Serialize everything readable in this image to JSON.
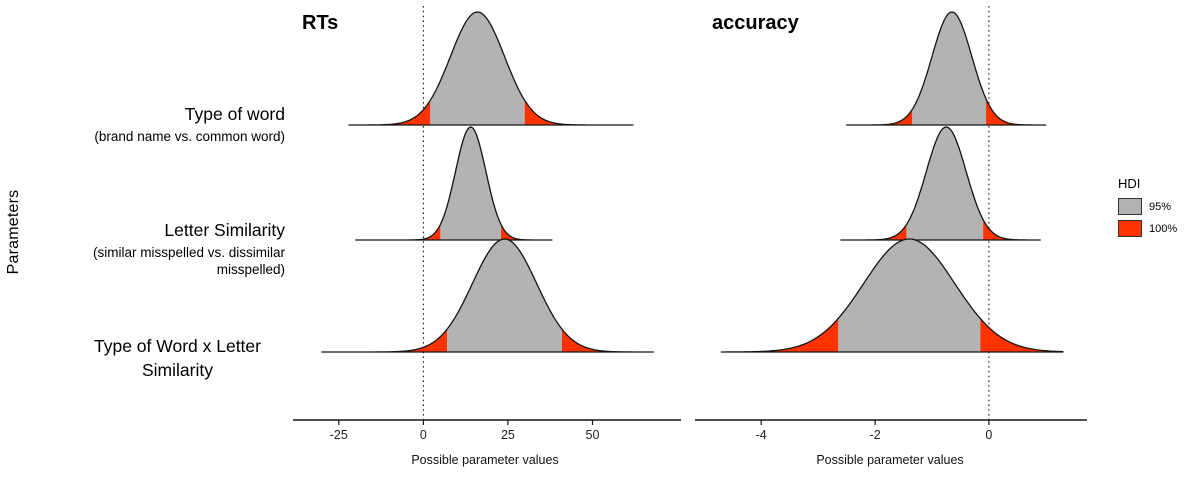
{
  "figure": {
    "y_axis_label": "Parameters",
    "rows": [
      {
        "label": "Type of word",
        "sublabel": "(brand name vs. common word)"
      },
      {
        "label": "Letter Similarity",
        "sublabel": "(similar misspelled vs. dissimilar misspelled)"
      },
      {
        "label": "Type of Word x Letter Similarity",
        "sublabel": ""
      }
    ],
    "legend": {
      "title": "HDI",
      "entries": [
        {
          "label": "95%",
          "color": "#b3b3b3"
        },
        {
          "label": "100%",
          "color": "#ff3300"
        }
      ]
    }
  },
  "chart_data": {
    "type": "area",
    "subtype": "ridgeline-density",
    "legend": {
      "title": "HDI",
      "entries": [
        "95%",
        "100%"
      ],
      "position": "right"
    },
    "rows": [
      "Type of word (brand name vs. common word)",
      "Letter Similarity (similar misspelled vs. dissimilar misspelled)",
      "Type of Word x Letter Similarity"
    ],
    "panels": [
      {
        "title": "RTs",
        "xlabel": "Possible parameter values",
        "xdomain": [
          -35,
          75
        ],
        "xticks": [
          -25,
          0,
          25,
          50
        ],
        "reference_line_x": 0,
        "series": [
          {
            "row": 0,
            "mean": 16,
            "sd": 8,
            "hdi_95": [
              2,
              30
            ],
            "x_range": [
              -22,
              62
            ]
          },
          {
            "row": 1,
            "mean": 14,
            "sd": 4.5,
            "hdi_95": [
              5,
              23
            ],
            "x_range": [
              -20,
              38
            ]
          },
          {
            "row": 2,
            "mean": 24,
            "sd": 9.5,
            "hdi_95": [
              7,
              41
            ],
            "x_range": [
              -30,
              68
            ]
          }
        ]
      },
      {
        "title": "accuracy",
        "xlabel": "Possible parameter values",
        "xdomain": [
          -4.9,
          1.6
        ],
        "xticks": [
          -4,
          -2,
          0
        ],
        "reference_line_x": 0,
        "series": [
          {
            "row": 0,
            "mean": -0.65,
            "sd": 0.35,
            "hdi_95": [
              -1.35,
              -0.05
            ],
            "x_range": [
              -2.5,
              1.0
            ]
          },
          {
            "row": 1,
            "mean": -0.75,
            "sd": 0.35,
            "hdi_95": [
              -1.45,
              -0.1
            ],
            "x_range": [
              -2.6,
              0.9
            ]
          },
          {
            "row": 2,
            "mean": -1.4,
            "sd": 0.8,
            "hdi_95": [
              -2.65,
              -0.15
            ],
            "x_range": [
              -4.7,
              1.3
            ]
          }
        ]
      }
    ]
  }
}
